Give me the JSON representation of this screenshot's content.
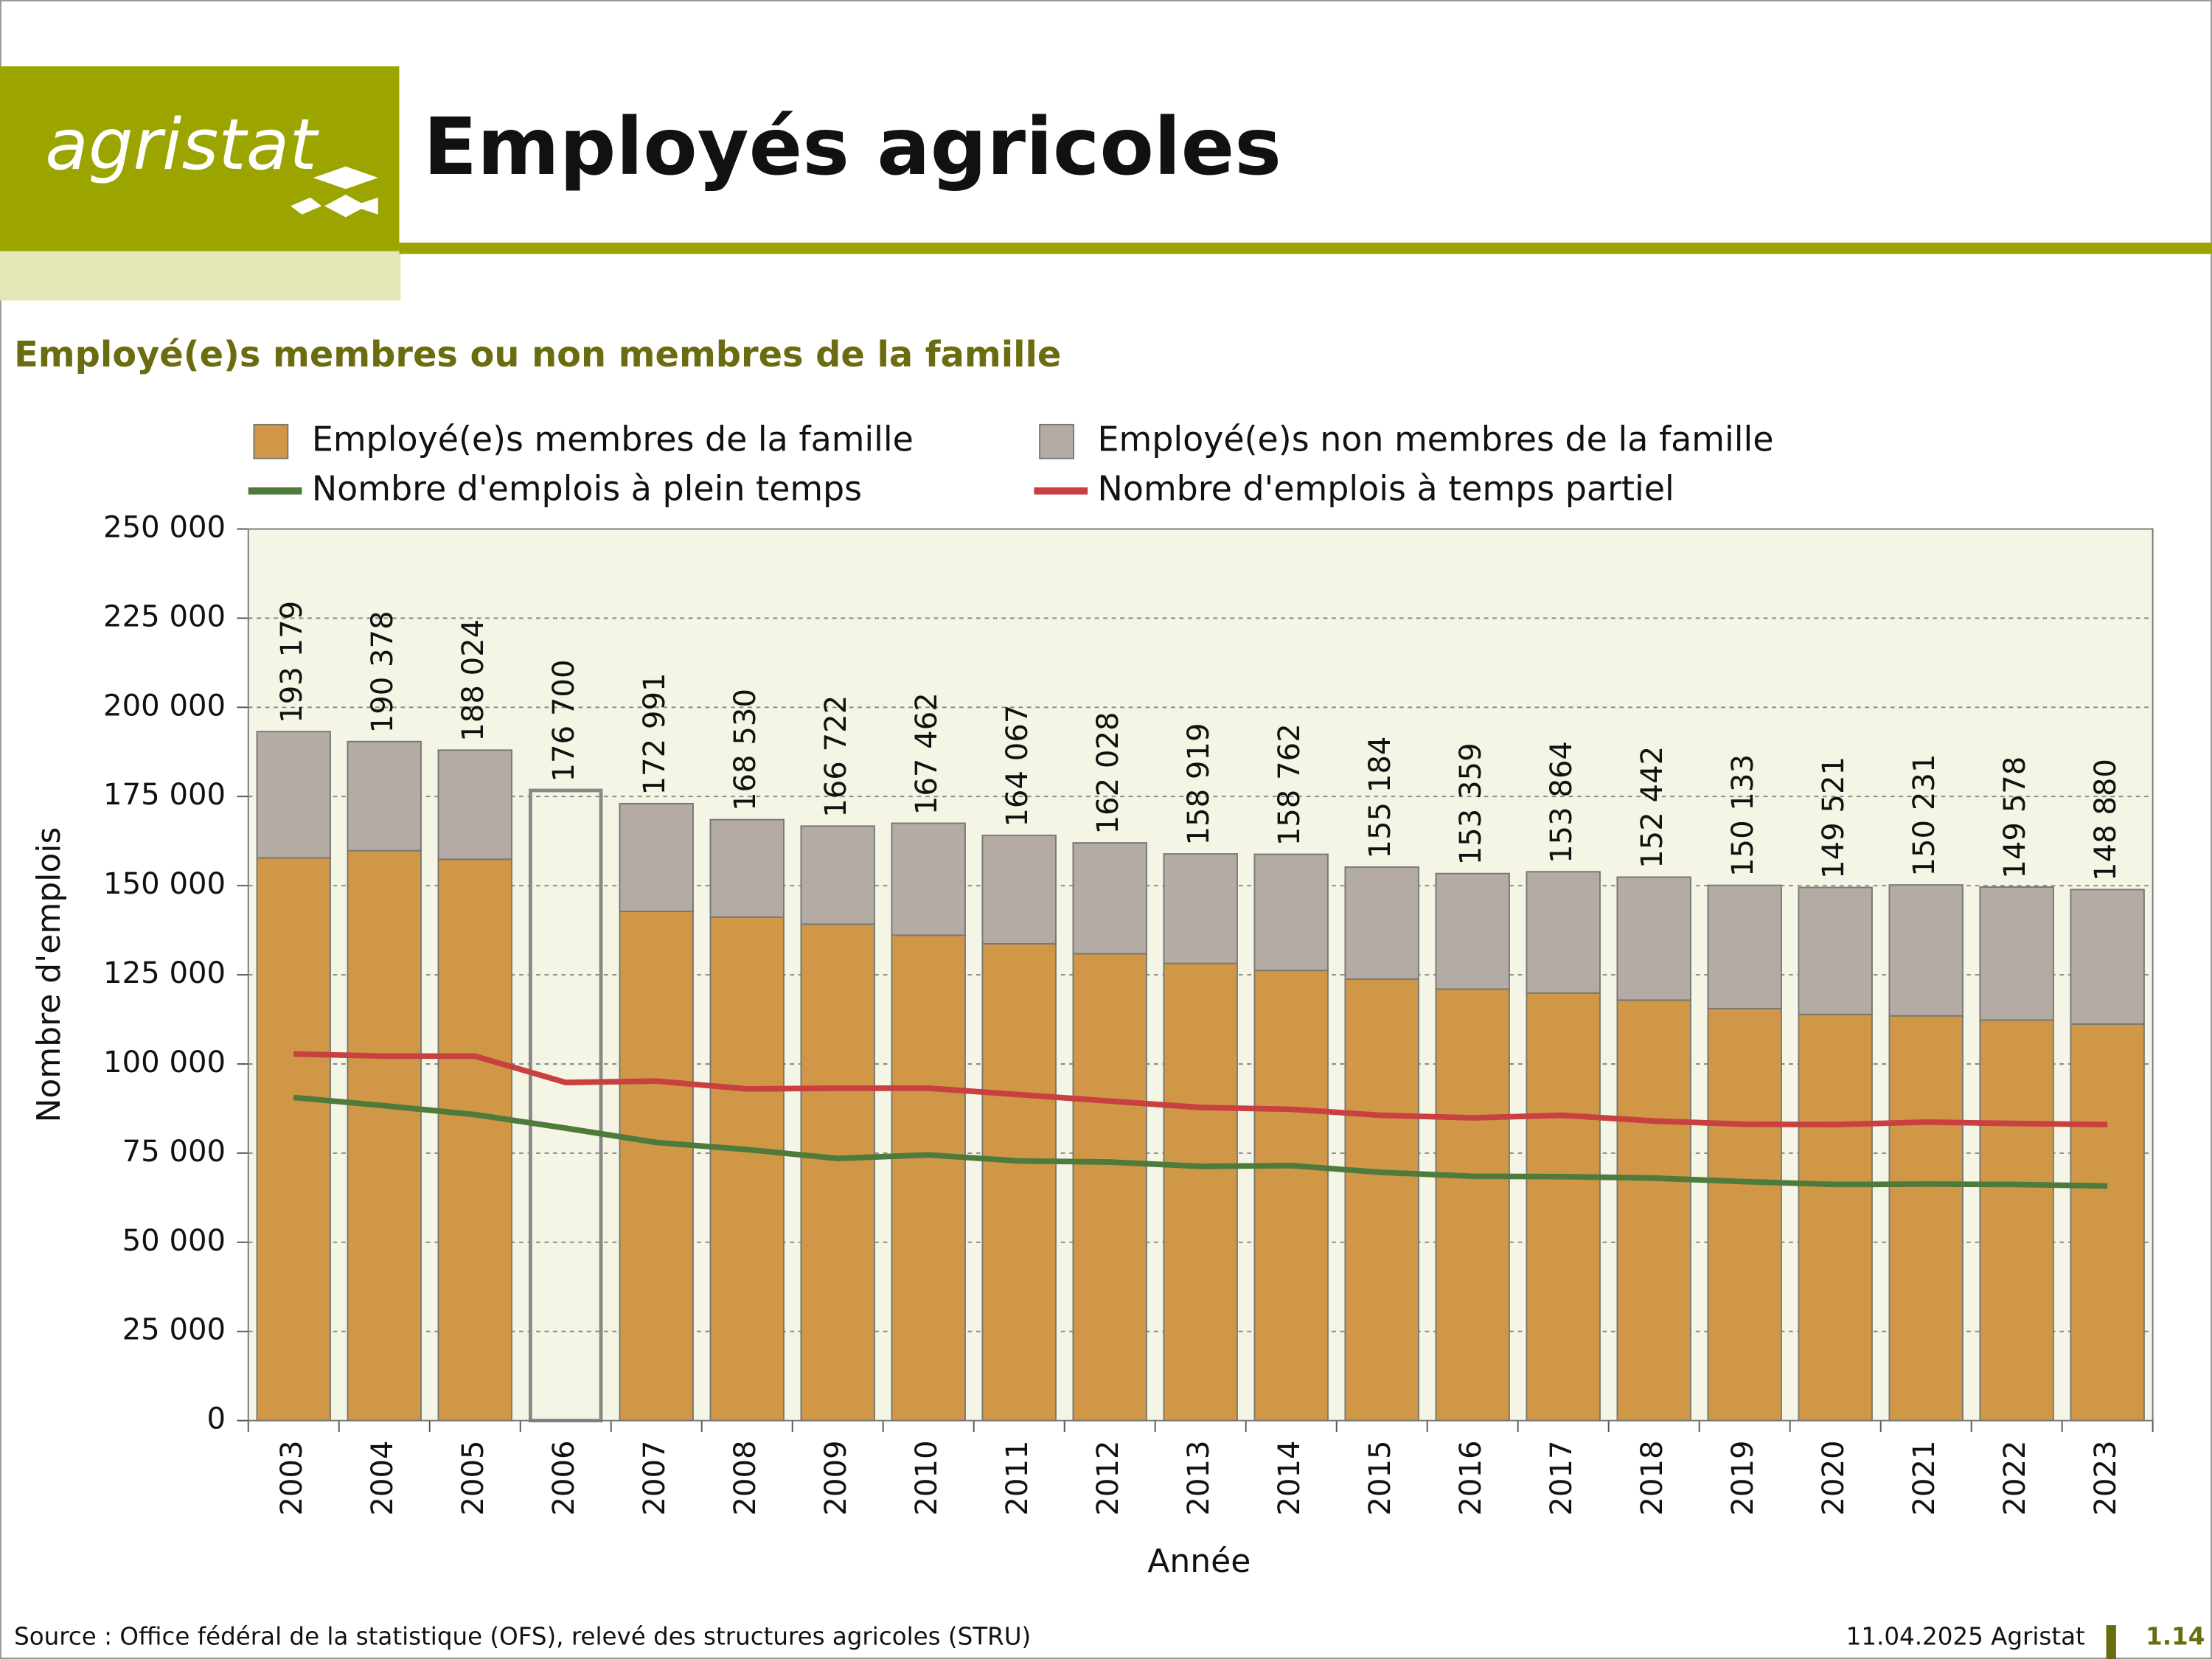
{
  "header": {
    "logo": "agristat",
    "title": "Employés agricoles"
  },
  "chart_data": {
    "type": "stacked-bar-line",
    "title": "Employé(e)s membres ou non membres de la famille",
    "xlabel": "Année",
    "ylabel": "Nombre d'emplois",
    "categories": [
      "2003",
      "2004",
      "2005",
      "2006",
      "2007",
      "2008",
      "2009",
      "2010",
      "2011",
      "2012",
      "2013",
      "2014",
      "2015",
      "2016",
      "2017",
      "2018",
      "2019",
      "2020",
      "2021",
      "2022",
      "2023"
    ],
    "ylim": [
      0,
      250000
    ],
    "yticks": [
      0,
      {
        "value": 25000,
        "label": "25 000"
      },
      {
        "value": 50000,
        "label": "50 000"
      },
      {
        "value": 75000,
        "label": "75 000"
      },
      {
        "value": 100000,
        "label": "100 000"
      },
      {
        "value": 125000,
        "label": "125 000"
      },
      {
        "value": 150000,
        "label": "150 000"
      },
      {
        "value": 175000,
        "label": "175 000"
      },
      {
        "value": 200000,
        "label": "200 000"
      },
      {
        "value": 225000,
        "label": "225 000"
      },
      {
        "value": 250000,
        "label": "250 000"
      }
    ],
    "grid": true,
    "series": [
      {
        "name": "Employé(e)s membres de la famille",
        "kind": "bar",
        "color": "#cf9746",
        "values": [
          157800,
          159800,
          157400,
          null,
          142800,
          141200,
          139200,
          136100,
          133700,
          130900,
          128200,
          126200,
          123800,
          121000,
          119900,
          117900,
          115500,
          113900,
          113500,
          112300,
          111200
        ]
      },
      {
        "name": "Employé(e)s non membres de la famille",
        "kind": "bar",
        "color": "#b3aba4",
        "values": [
          35400,
          30600,
          30600,
          null,
          30200,
          27300,
          27500,
          31400,
          30400,
          31100,
          30700,
          32600,
          31400,
          32400,
          34000,
          34500,
          34600,
          35600,
          36700,
          37300,
          37700
        ]
      },
      {
        "name": "Nombre d'emplois à plein temps",
        "kind": "line",
        "color": "#4e7a3c",
        "values": [
          90600,
          88300,
          85800,
          82000,
          78000,
          76000,
          73500,
          74500,
          72800,
          72500,
          71300,
          71500,
          69600,
          68500,
          68400,
          68000,
          67000,
          66200,
          66300,
          66200,
          65800
        ]
      },
      {
        "name": "Nombre d'emplois à temps partiel",
        "kind": "line",
        "color": "#c84040",
        "values": [
          102800,
          102200,
          102200,
          94800,
          95200,
          93000,
          93200,
          93200,
          91400,
          89600,
          87800,
          87300,
          85600,
          84900,
          85600,
          84000,
          83100,
          83000,
          83700,
          83300,
          83000
        ]
      }
    ],
    "totals": {
      "values": [
        193179,
        190378,
        188024,
        176700,
        172991,
        168530,
        166722,
        167462,
        164067,
        162028,
        158919,
        158762,
        155184,
        153359,
        153864,
        152442,
        150133,
        149521,
        150231,
        149578,
        148880
      ],
      "value_labels": [
        "193 179",
        "190 378",
        "188 024",
        "176 700",
        "172 991",
        "168 530",
        "166 722",
        "167 462",
        "164 067",
        "162 028",
        "158 919",
        "158 762",
        "155 184",
        "153 359",
        "153 864",
        "152 442",
        "150 133",
        "149 521",
        "150 231",
        "149 578",
        "148 880"
      ]
    }
  },
  "footer": {
    "source": "Source : Office fédéral de la statistique (OFS), relevé des structures agricoles (STRU)",
    "date": "11.04.2025 Agristat",
    "page": "1.14"
  }
}
